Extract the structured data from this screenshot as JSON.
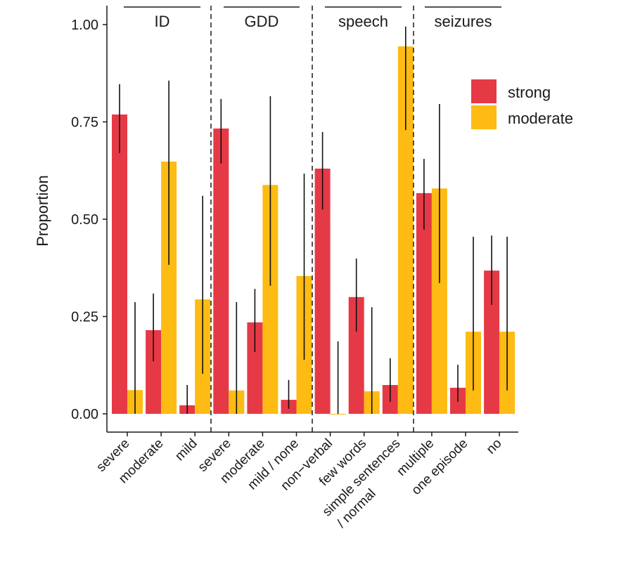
{
  "chart_data": {
    "type": "bar",
    "ylabel": "Proportion",
    "ylim": [
      0,
      1
    ],
    "yticks": [
      "0.00",
      "0.25",
      "0.50",
      "0.75",
      "1.00"
    ],
    "ytick_values": [
      0,
      0.25,
      0.5,
      0.75,
      1
    ],
    "legend": {
      "placement": "top-right",
      "entries": [
        "strong",
        "moderate"
      ]
    },
    "colors": {
      "strong": "#e63946",
      "moderate": "#fdbb13"
    },
    "groups": [
      {
        "label": "ID",
        "categories": [
          "severe",
          "moderate",
          "mild"
        ]
      },
      {
        "label": "GDD",
        "categories": [
          "severe",
          "moderate",
          "mild / none"
        ]
      },
      {
        "label": "speech",
        "categories": [
          "non−verbal",
          "few words",
          "simple sentences\n/ normal"
        ]
      },
      {
        "label": "seizures",
        "categories": [
          "multiple",
          "one episode",
          "no"
        ]
      }
    ],
    "series": [
      {
        "name": "strong",
        "values": [
          0.769,
          0.215,
          0.022,
          0.733,
          0.235,
          0.036,
          0.63,
          0.3,
          0.074,
          0.567,
          0.067,
          0.368
        ],
        "ci_low": [
          0.67,
          0.135,
          0,
          0.643,
          0.159,
          0.013,
          0.525,
          0.211,
          0.031,
          0.473,
          0.031,
          0.28
        ],
        "ci_high": [
          0.847,
          0.309,
          0.074,
          0.809,
          0.321,
          0.087,
          0.724,
          0.399,
          0.143,
          0.655,
          0.126,
          0.458
        ]
      },
      {
        "name": "moderate",
        "values": [
          0.061,
          0.648,
          0.294,
          0.06,
          0.588,
          0.354,
          0,
          0.058,
          0.944,
          0.579,
          0.211,
          0.211
        ],
        "ci_low": [
          0,
          0.383,
          0.103,
          0,
          0.329,
          0.139,
          0,
          0,
          0.729,
          0.336,
          0.06,
          0.06
        ],
        "ci_high": [
          0.287,
          0.856,
          0.56,
          0.287,
          0.816,
          0.617,
          0.186,
          0.274,
          0.995,
          0.796,
          0.455,
          0.455
        ]
      }
    ]
  }
}
